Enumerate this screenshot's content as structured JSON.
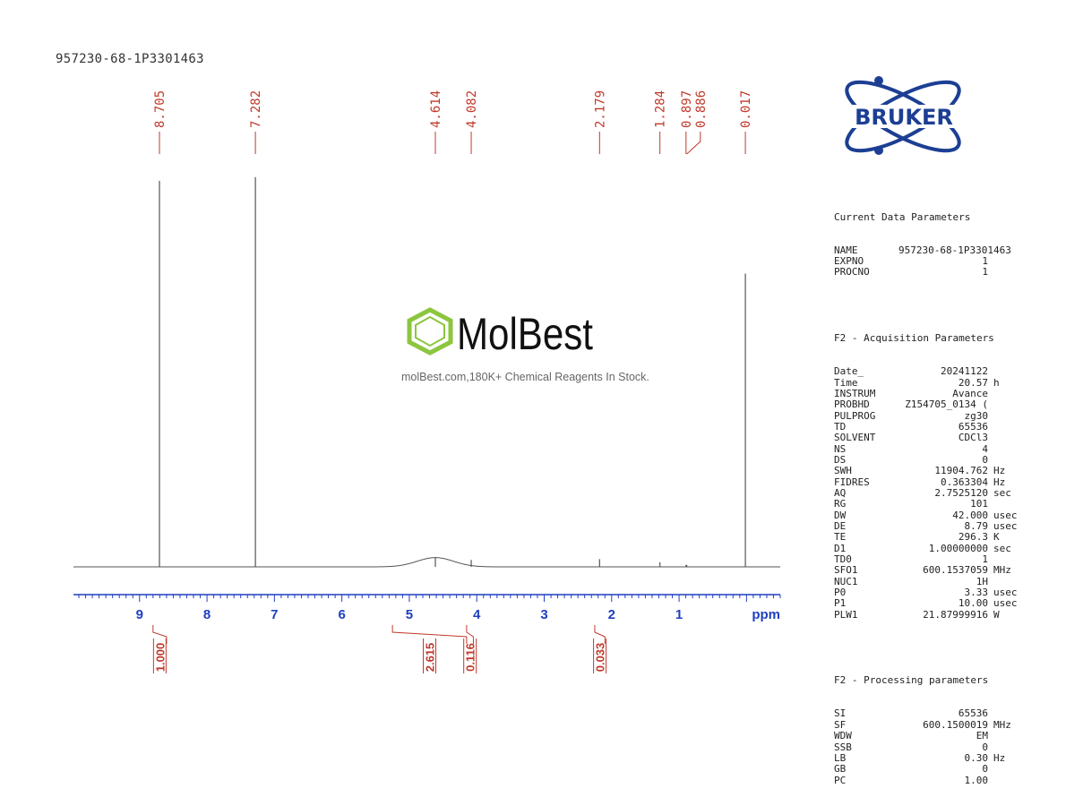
{
  "document": {
    "sample_title": "957230-68-1P3301463",
    "watermark_caption": "molBest.com,180K+ Chemical Reagents In Stock."
  },
  "logos": {
    "bruker_text": "BRUKER",
    "molbest_text": "MolBest",
    "bruker_color": "#1c3f94",
    "molbest_icon_color": "#8cc63f"
  },
  "chart_data": {
    "type": "line",
    "title": "",
    "xlabel": "ppm",
    "ylabel": "",
    "x_reversed": true,
    "xlim": [
      9.98,
      -0.5
    ],
    "x_ticks": [
      "9",
      "8",
      "7",
      "6",
      "5",
      "4",
      "3",
      "2",
      "1"
    ],
    "peak_labels": [
      "8.705",
      "7.282",
      "4.614",
      "4.082",
      "2.179",
      "1.284",
      "0.897",
      "0.886",
      "0.017"
    ],
    "peaks": [
      {
        "ppm": 8.705,
        "height": 1.0
      },
      {
        "ppm": 7.282,
        "height": 1.01
      },
      {
        "ppm": 4.614,
        "height": 0.025
      },
      {
        "ppm": 4.082,
        "height": 0.018
      },
      {
        "ppm": 2.179,
        "height": 0.02
      },
      {
        "ppm": 1.284,
        "height": 0.012
      },
      {
        "ppm": 0.897,
        "height": 0.005
      },
      {
        "ppm": 0.886,
        "height": 0.005
      },
      {
        "ppm": 0.017,
        "height": 0.76
      }
    ],
    "integrals": [
      {
        "from": 8.8,
        "to": 8.6,
        "value": "1.000"
      },
      {
        "from": 5.25,
        "to": 4.15,
        "value": "2.615"
      },
      {
        "from": 4.15,
        "to": 4.05,
        "value": "0.116"
      },
      {
        "from": 2.25,
        "to": 2.1,
        "value": "0.033"
      }
    ],
    "colors": {
      "spectrum": "#555555",
      "peak_label": "#c0392b",
      "axis": "#1f3fbf",
      "integral": "#c0392b"
    }
  },
  "parameters": {
    "current": {
      "title": "Current Data Parameters",
      "rows": [
        {
          "k": "NAME",
          "v": "957230-68-1P3301463",
          "u": ""
        },
        {
          "k": "EXPNO",
          "v": "1",
          "u": ""
        },
        {
          "k": "PROCNO",
          "v": "1",
          "u": ""
        }
      ]
    },
    "acquisition": {
      "title": "F2 - Acquisition Parameters",
      "rows": [
        {
          "k": "Date_",
          "v": "20241122",
          "u": ""
        },
        {
          "k": "Time",
          "v": "20.57",
          "u": "h"
        },
        {
          "k": "INSTRUM",
          "v": "Avance",
          "u": ""
        },
        {
          "k": "PROBHD",
          "v": "Z154705_0134 (",
          "u": ""
        },
        {
          "k": "PULPROG",
          "v": "zg30",
          "u": ""
        },
        {
          "k": "TD",
          "v": "65536",
          "u": ""
        },
        {
          "k": "SOLVENT",
          "v": "CDCl3",
          "u": ""
        },
        {
          "k": "NS",
          "v": "4",
          "u": ""
        },
        {
          "k": "DS",
          "v": "0",
          "u": ""
        },
        {
          "k": "SWH",
          "v": "11904.762",
          "u": "Hz"
        },
        {
          "k": "FIDRES",
          "v": "0.363304",
          "u": "Hz"
        },
        {
          "k": "AQ",
          "v": "2.7525120",
          "u": "sec"
        },
        {
          "k": "RG",
          "v": "101",
          "u": ""
        },
        {
          "k": "DW",
          "v": "42.000",
          "u": "usec"
        },
        {
          "k": "DE",
          "v": "8.79",
          "u": "usec"
        },
        {
          "k": "TE",
          "v": "296.3",
          "u": "K"
        },
        {
          "k": "D1",
          "v": "1.00000000",
          "u": "sec"
        },
        {
          "k": "TD0",
          "v": "1",
          "u": ""
        },
        {
          "k": "SFO1",
          "v": "600.1537059",
          "u": "MHz"
        },
        {
          "k": "NUC1",
          "v": "1H",
          "u": ""
        },
        {
          "k": "P0",
          "v": "3.33",
          "u": "usec"
        },
        {
          "k": "P1",
          "v": "10.00",
          "u": "usec"
        },
        {
          "k": "PLW1",
          "v": "21.87999916",
          "u": "W"
        }
      ]
    },
    "processing": {
      "title": "F2 - Processing parameters",
      "rows": [
        {
          "k": "SI",
          "v": "65536",
          "u": ""
        },
        {
          "k": "SF",
          "v": "600.1500019",
          "u": "MHz"
        },
        {
          "k": "WDW",
          "v": "EM",
          "u": ""
        },
        {
          "k": "SSB",
          "v": "0",
          "u": ""
        },
        {
          "k": "LB",
          "v": "0.30",
          "u": "Hz"
        },
        {
          "k": "GB",
          "v": "0",
          "u": ""
        },
        {
          "k": "PC",
          "v": "1.00",
          "u": ""
        }
      ]
    }
  }
}
